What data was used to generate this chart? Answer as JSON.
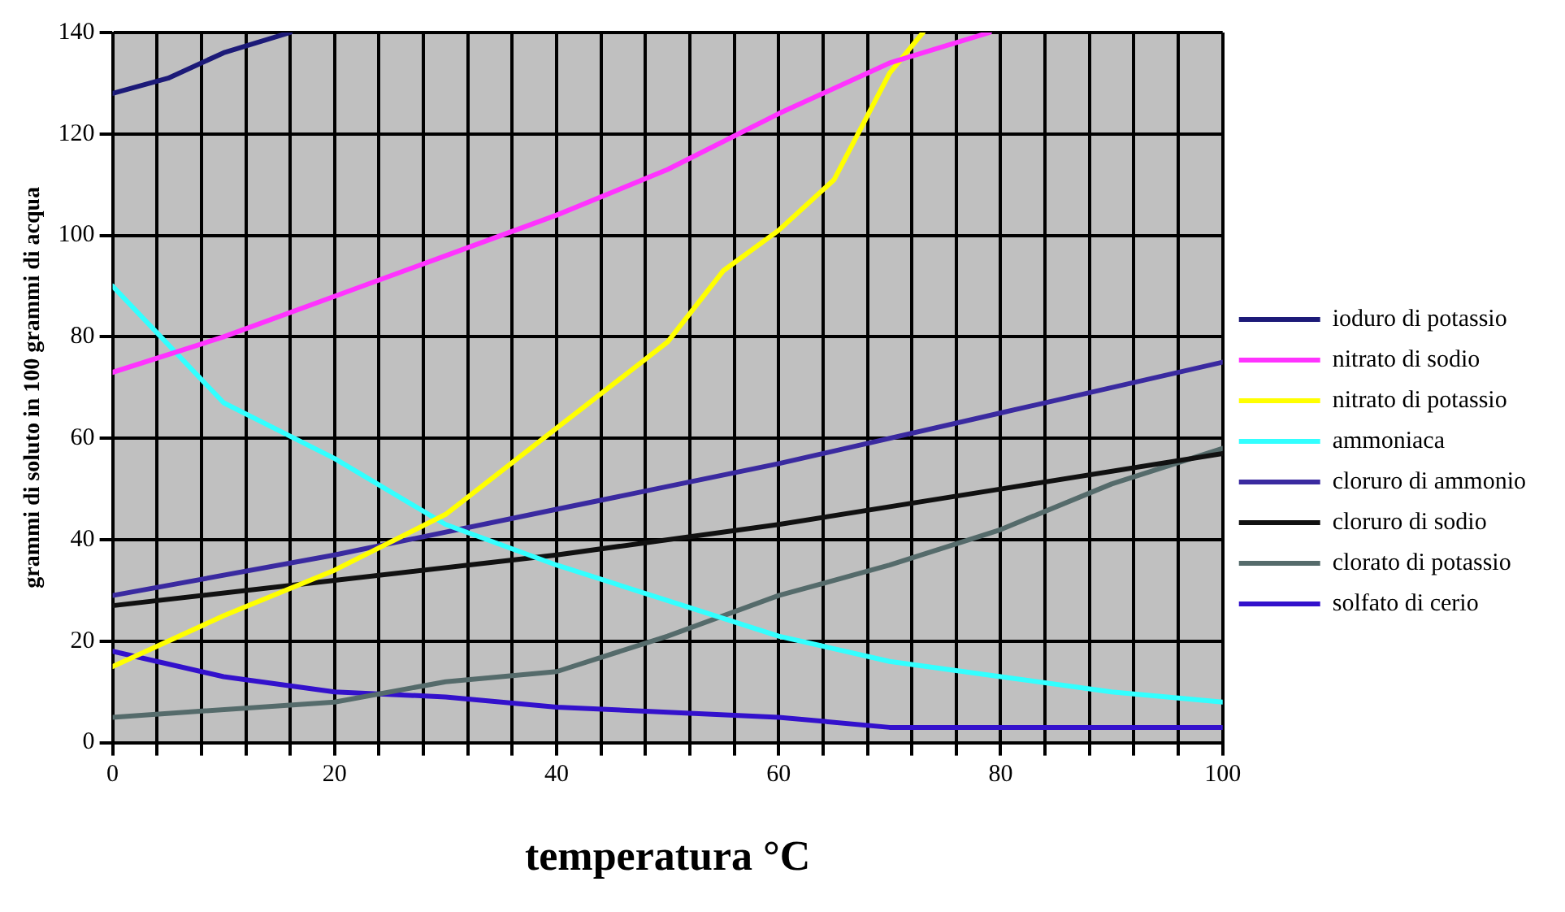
{
  "chart_data": {
    "type": "line",
    "xlabel": "temperatura °C",
    "ylabel": "grammi di soluto in 100 grammi di acqua",
    "xlim": [
      0,
      100
    ],
    "ylim": [
      0,
      140
    ],
    "xticks": [
      0,
      {
        "value": 4,
        "label": null
      },
      {
        "value": 8,
        "label": null
      },
      {
        "value": 12,
        "label": null
      },
      {
        "value": 16,
        "label": null
      },
      20,
      {
        "value": 24,
        "label": null
      },
      {
        "value": 28,
        "label": null
      },
      {
        "value": 32,
        "label": null
      },
      {
        "value": 36,
        "label": null
      },
      40,
      {
        "value": 44,
        "label": null
      },
      {
        "value": 48,
        "label": null
      },
      {
        "value": 52,
        "label": null
      },
      {
        "value": 56,
        "label": null
      },
      60,
      {
        "value": 64,
        "label": null
      },
      {
        "value": 68,
        "label": null
      },
      {
        "value": 72,
        "label": null
      },
      {
        "value": 76,
        "label": null
      },
      80,
      {
        "value": 84,
        "label": null
      },
      {
        "value": 88,
        "label": null
      },
      {
        "value": 92,
        "label": null
      },
      {
        "value": 96,
        "label": null
      },
      100
    ],
    "yticks": [
      0,
      20,
      40,
      60,
      80,
      100,
      120,
      140
    ],
    "grid": true,
    "legend": "right",
    "marker": "none",
    "line_style": "solid",
    "series": [
      {
        "name": "ioduro di potassio",
        "color": "#1c1a78",
        "x": [
          0,
          5,
          10,
          16
        ],
        "values": [
          128,
          131,
          136,
          140
        ]
      },
      {
        "name": "nitrato di sodio",
        "color": "#ff33ff",
        "x": [
          0,
          10,
          20,
          30,
          40,
          50,
          60,
          70,
          79
        ],
        "values": [
          73,
          80,
          88,
          96,
          104,
          113,
          124,
          134,
          140
        ]
      },
      {
        "name": "nitrato di potassio",
        "color": "#ffff00",
        "x": [
          0,
          10,
          20,
          30,
          40,
          50,
          55,
          60,
          65,
          70,
          73
        ],
        "values": [
          15,
          25,
          34,
          45,
          62,
          79,
          93,
          101,
          111,
          132,
          140
        ]
      },
      {
        "name": "ammoniaca",
        "color": "#33ffff",
        "x": [
          0,
          10,
          20,
          30,
          40,
          50,
          60,
          70,
          80,
          90,
          100
        ],
        "values": [
          90,
          67,
          56,
          43,
          35,
          28,
          21,
          16,
          13,
          10,
          8
        ]
      },
      {
        "name": "cloruro di ammonio",
        "color": "#3a2aa0",
        "x": [
          0,
          20,
          40,
          60,
          80,
          100
        ],
        "values": [
          29,
          37,
          46,
          55,
          65,
          75
        ]
      },
      {
        "name": "cloruro di sodio",
        "color": "#111111",
        "x": [
          0,
          20,
          40,
          60,
          80,
          100
        ],
        "values": [
          27,
          32,
          37,
          43,
          50,
          57
        ]
      },
      {
        "name": "clorato di potassio",
        "color": "#556b6b",
        "x": [
          0,
          20,
          30,
          40,
          50,
          60,
          70,
          80,
          90,
          100
        ],
        "values": [
          5,
          8,
          12,
          14,
          21,
          29,
          35,
          42,
          51,
          58
        ]
      },
      {
        "name": "solfato di cerio",
        "color": "#3311cc",
        "x": [
          0,
          10,
          20,
          30,
          40,
          50,
          60,
          70,
          80,
          100
        ],
        "values": [
          18,
          13,
          10,
          9,
          7,
          6,
          5,
          3,
          3,
          3
        ]
      }
    ]
  }
}
